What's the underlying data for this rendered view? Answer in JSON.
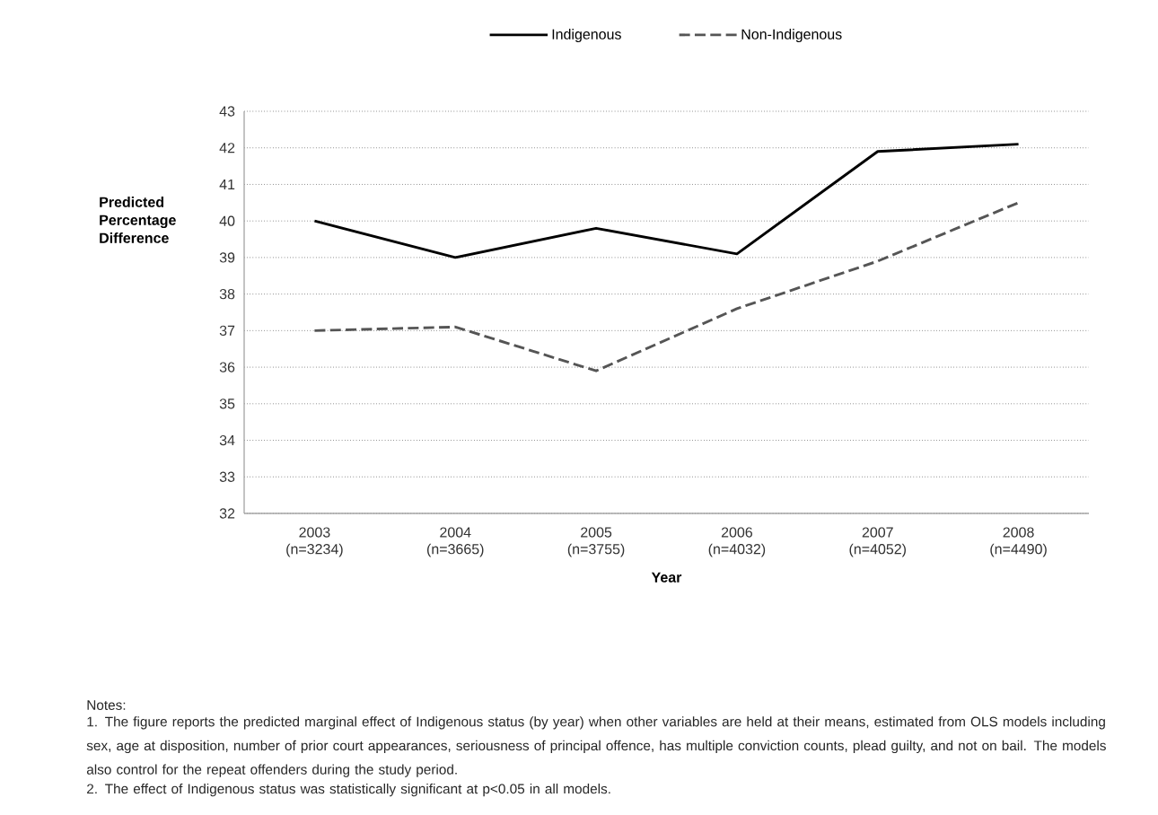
{
  "chart_data": {
    "type": "line",
    "categories": [
      "2003 (n=3234)",
      "2004 (n=3665)",
      "2005 (n=3755)",
      "2006 (n=4032)",
      "2007 (n=4052)",
      "2008 (n=4490)"
    ],
    "series": [
      {
        "name": "Indigenous",
        "color": "#000000",
        "line_style": "solid",
        "values": [
          40.0,
          39.0,
          39.8,
          39.1,
          41.9,
          42.1
        ]
      },
      {
        "name": "Non-Indigenous",
        "color": "#555555",
        "line_style": "dashed",
        "values": [
          37.0,
          37.1,
          35.9,
          37.6,
          38.9,
          40.5
        ]
      }
    ],
    "xlabel": "Year",
    "ylabel": "Predicted Percentage Difference",
    "ylim": [
      32,
      43
    ],
    "yticks": [
      32,
      33,
      34,
      35,
      36,
      37,
      38,
      39,
      40,
      41,
      42,
      43
    ],
    "grid": "y",
    "legend": "top",
    "annotations": [
      "Notes:",
      "1. The figure reports the predicted marginal effect of Indigenous status (by year) when other variables are held at their means, estimated from OLS models including sex, age at disposition, number of prior court appearances, seriousness of principal offence, has multiple conviction counts, plead guilty, and not on bail. The models also control for the repeat offenders during the study period.",
      "2. The effect of Indigenous status was statistically significant at p<0.05 in all models."
    ]
  }
}
